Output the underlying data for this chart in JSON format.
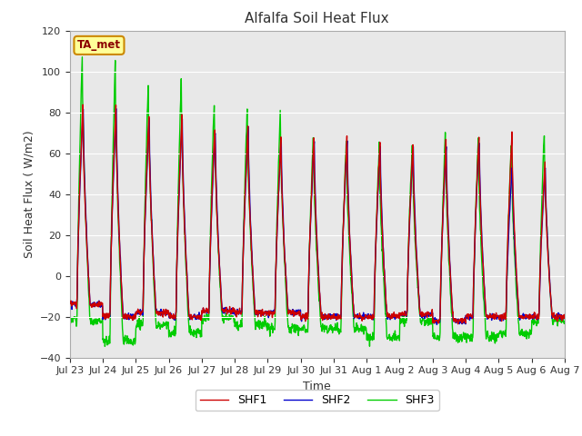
{
  "title": "Alfalfa Soil Heat Flux",
  "xlabel": "Time",
  "ylabel": "Soil Heat Flux ( W/m2)",
  "ylim": [
    -40,
    120
  ],
  "yticks": [
    -40,
    -20,
    0,
    20,
    40,
    60,
    80,
    100,
    120
  ],
  "series_colors": [
    "#cc0000",
    "#0000cc",
    "#00cc00"
  ],
  "series_labels": [
    "SHF1",
    "SHF2",
    "SHF3"
  ],
  "annotation_text": "TA_met",
  "annotation_color": "#8b0000",
  "annotation_bg": "#ffff99",
  "annotation_edge": "#cc8800",
  "bg_color": "#e8e8e8",
  "line_width": 1.0,
  "n_days": 15,
  "day_peak_shf1": [
    84,
    84,
    79,
    79,
    73,
    73,
    68,
    68,
    68,
    65,
    65,
    65,
    68,
    70,
    55
  ],
  "day_peak_shf2": [
    84,
    84,
    79,
    79,
    73,
    74,
    68,
    68,
    68,
    65,
    65,
    65,
    68,
    55,
    55
  ],
  "day_peak_shf3": [
    108,
    106,
    95,
    98,
    86,
    83,
    81,
    69,
    66,
    65,
    66,
    70,
    68,
    65,
    70
  ],
  "day_trough_shf1": [
    -14,
    -20,
    -18,
    -20,
    -17,
    -18,
    -18,
    -20,
    -20,
    -20,
    -19,
    -22,
    -20,
    -20,
    -20
  ],
  "day_trough_shf2": [
    -14,
    -20,
    -18,
    -20,
    -17,
    -18,
    -18,
    -20,
    -20,
    -20,
    -19,
    -22,
    -20,
    -20,
    -20
  ],
  "day_trough_shf3": [
    -22,
    -32,
    -24,
    -28,
    -21,
    -24,
    -26,
    -26,
    -26,
    -30,
    -22,
    -30,
    -30,
    -28,
    -22
  ]
}
